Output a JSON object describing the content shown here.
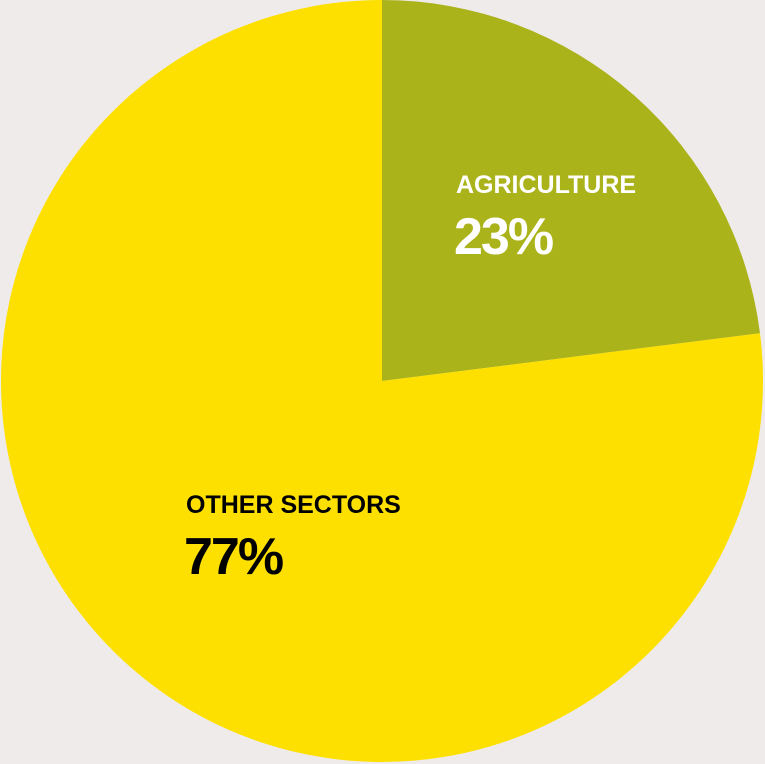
{
  "chart_data": {
    "type": "pie",
    "categories": [
      "AGRICULTURE",
      "OTHER SECTORS"
    ],
    "values": [
      23,
      77
    ],
    "value_labels": [
      "23%",
      "77%"
    ],
    "colors": [
      "#abb31a",
      "#fde000"
    ],
    "label_colors": [
      "#ffffff",
      "#000000"
    ]
  }
}
